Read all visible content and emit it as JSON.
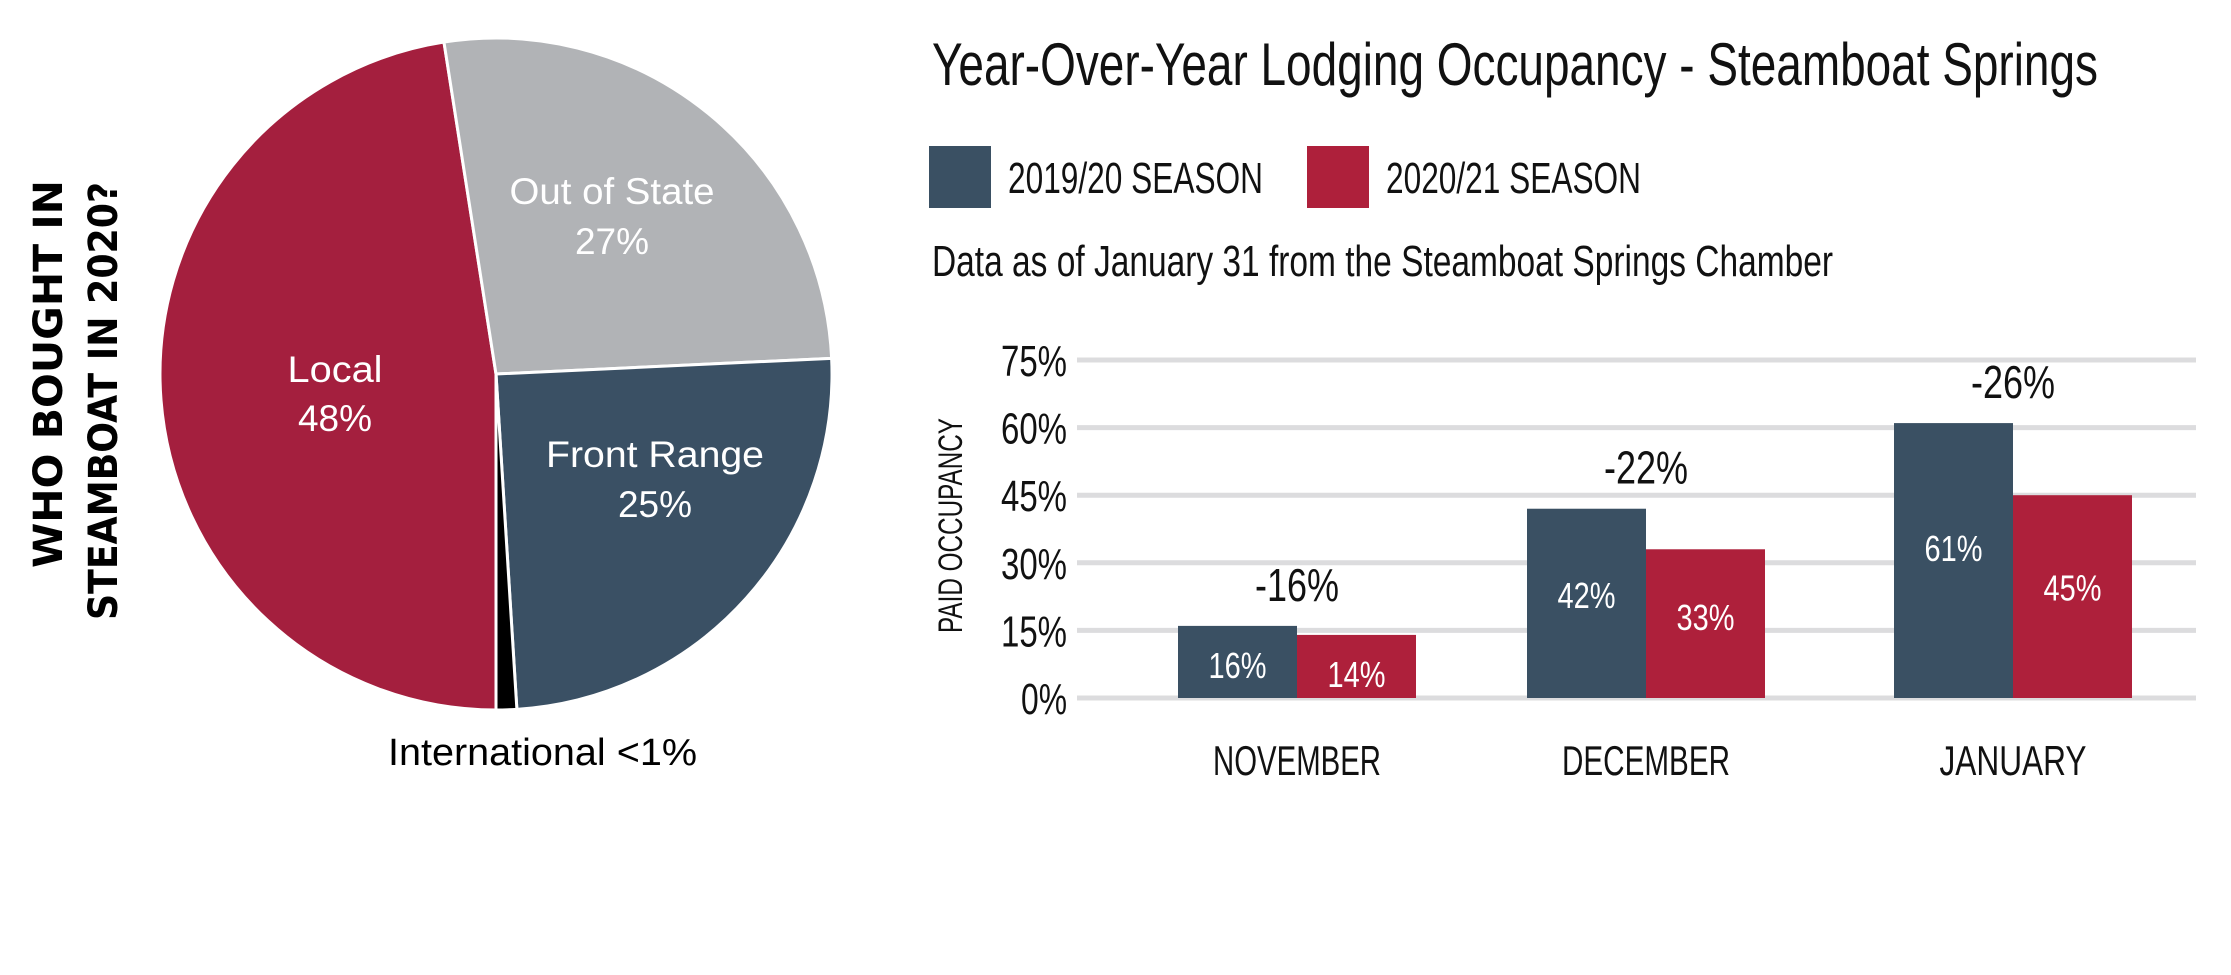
{
  "chart_data": [
    {
      "type": "pie",
      "title": "WHO BOUGHT IN STEAMBOAT IN 2020?",
      "title_lines": [
        "WHO BOUGHT IN",
        "STEAMBOAT IN 2020?"
      ],
      "slices": [
        {
          "label": "Local",
          "value": 48,
          "display": "48%",
          "color": "#A41F3E",
          "label_inside": true
        },
        {
          "label": "Out of State",
          "value": 27,
          "display": "27%",
          "color": "#B1B3B6",
          "label_inside": true
        },
        {
          "label": "Front Range",
          "value": 25,
          "display": "25%",
          "color": "#3A5064",
          "label_inside": true
        },
        {
          "label": "International",
          "value": 1,
          "display": "<1%",
          "color": "#000000",
          "label_inside": false
        }
      ],
      "external_label": "International <1%"
    },
    {
      "type": "bar",
      "title": "Year-Over-Year Lodging Occupancy - Steamboat Springs",
      "subtitle": "Data as of January 31 from the Steamboat Springs Chamber",
      "categories": [
        "NOVEMBER",
        "DECEMBER",
        "JANUARY"
      ],
      "series": [
        {
          "name": "2019/20 SEASON",
          "color": "#3A5063",
          "values": [
            16,
            42,
            61
          ],
          "labels": [
            "16%",
            "42%",
            "61%"
          ]
        },
        {
          "name": "2020/21 SEASON",
          "color": "#AE203B",
          "values": [
            14,
            33,
            45
          ],
          "labels": [
            "14%",
            "33%",
            "45%"
          ]
        }
      ],
      "change_labels": [
        "-16%",
        "-22%",
        "-26%"
      ],
      "xlabel": "",
      "ylabel": "PAID OCCUPANCY",
      "ylim": [
        0,
        75
      ],
      "yticks": [
        0,
        15,
        30,
        45,
        60,
        75
      ],
      "ytick_labels": [
        "0%",
        "15%",
        "30%",
        "45%",
        "60%",
        "75%"
      ],
      "grid": true,
      "legend_position": "top-left"
    }
  ]
}
